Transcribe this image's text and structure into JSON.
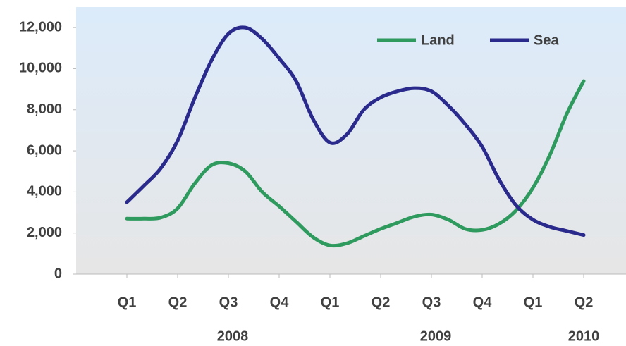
{
  "chart_data": {
    "type": "line",
    "categories": [
      "Q1",
      null,
      null,
      "Q2",
      null,
      null,
      "Q3",
      null,
      null,
      "Q4",
      null,
      null,
      "Q1",
      null,
      null,
      "Q2",
      null,
      null,
      "Q3",
      null,
      null,
      "Q4",
      null,
      null,
      "Q1",
      null,
      null,
      "Q2"
    ],
    "years": [
      "2008",
      "2009",
      "2010"
    ],
    "series": [
      {
        "name": "Land",
        "color": "#2e9a5e",
        "values": [
          2700,
          2700,
          2750,
          3200,
          4400,
          5300,
          5400,
          5000,
          4000,
          3300,
          2550,
          1800,
          1400,
          1500,
          1850,
          2200,
          2500,
          2800,
          2900,
          2650,
          2200,
          2150,
          2450,
          3100,
          4200,
          5800,
          7800,
          9400
        ]
      },
      {
        "name": "Sea",
        "color": "#2a2a8c",
        "values": [
          3500,
          4300,
          5150,
          6500,
          8550,
          10400,
          11700,
          12000,
          11450,
          10500,
          9400,
          7550,
          6400,
          6800,
          8000,
          8600,
          8900,
          9050,
          8900,
          8200,
          7300,
          6200,
          4600,
          3350,
          2650,
          2300,
          2100,
          1900
        ]
      }
    ],
    "ylim": [
      0,
      13000
    ],
    "yticks": [
      0,
      {
        "value": 2000,
        "label": "2,000"
      },
      {
        "value": 4000,
        "label": "4,000"
      },
      {
        "value": 6000,
        "label": "6,000"
      },
      {
        "value": 8000,
        "label": "8,000"
      },
      {
        "value": 10000,
        "label": "10,000"
      },
      {
        "value": 12000,
        "label": "12,000"
      }
    ],
    "legend": "upper right"
  }
}
